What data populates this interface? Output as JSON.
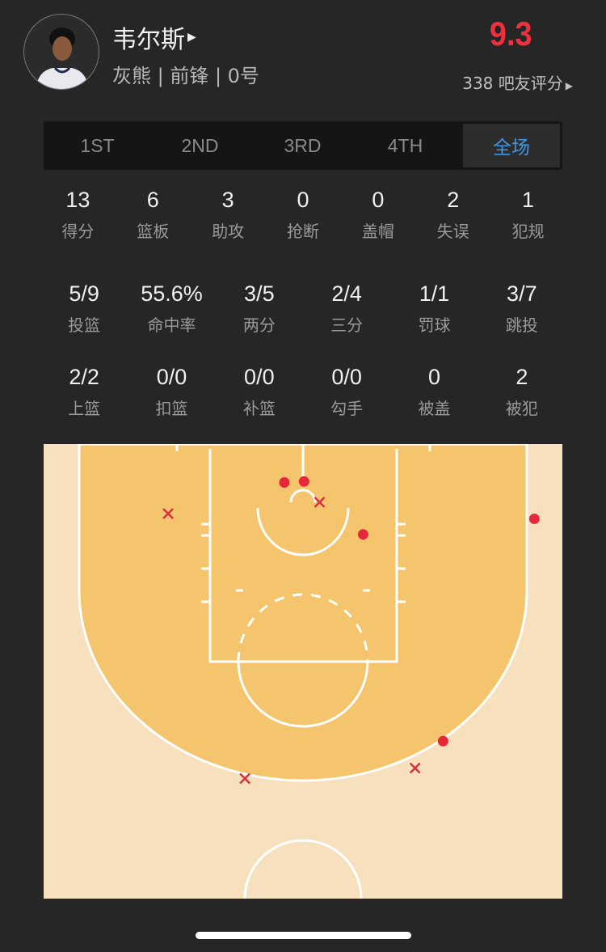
{
  "player": {
    "name": "韦尔斯",
    "info": "灰熊 | 前锋 | 0号",
    "rating": "9.3",
    "raters": "338 吧友评分",
    "rating_color": "#f0303c"
  },
  "tabs": [
    {
      "label": "1ST",
      "active": false
    },
    {
      "label": "2ND",
      "active": false
    },
    {
      "label": "3RD",
      "active": false
    },
    {
      "label": "4TH",
      "active": false
    },
    {
      "label": "全场",
      "active": true
    }
  ],
  "stats_row1": [
    {
      "value": "13",
      "label": "得分"
    },
    {
      "value": "6",
      "label": "篮板"
    },
    {
      "value": "3",
      "label": "助攻"
    },
    {
      "value": "0",
      "label": "抢断"
    },
    {
      "value": "0",
      "label": "盖帽"
    },
    {
      "value": "2",
      "label": "失误"
    },
    {
      "value": "1",
      "label": "犯规"
    }
  ],
  "stats_row2": [
    {
      "value": "5/9",
      "label": "投篮"
    },
    {
      "value": "55.6%",
      "label": "命中率"
    },
    {
      "value": "3/5",
      "label": "两分"
    },
    {
      "value": "2/4",
      "label": "三分"
    },
    {
      "value": "1/1",
      "label": "罚球"
    },
    {
      "value": "3/7",
      "label": "跳投"
    }
  ],
  "stats_row3": [
    {
      "value": "2/2",
      "label": "上篮"
    },
    {
      "value": "0/0",
      "label": "扣篮"
    },
    {
      "value": "0/0",
      "label": "补篮"
    },
    {
      "value": "0/0",
      "label": "勾手"
    },
    {
      "value": "0",
      "label": "被盖"
    },
    {
      "value": "2",
      "label": "被犯"
    }
  ],
  "shot_chart": {
    "colors": {
      "outside": "#f7e0bd",
      "inside": "#f4c56c",
      "made": "#e8283a",
      "miss": "#d8303c"
    },
    "units": "feet from left sideline / from baseline",
    "shots": [
      {
        "x": 23.2,
        "y": 3.7,
        "made": true
      },
      {
        "x": 25.1,
        "y": 3.6,
        "made": true
      },
      {
        "x": 30.8,
        "y": 8.7,
        "made": true
      },
      {
        "x": 47.3,
        "y": 7.2,
        "made": true
      },
      {
        "x": 38.5,
        "y": 28.6,
        "made": true
      },
      {
        "x": 12.0,
        "y": 6.7,
        "made": false
      },
      {
        "x": 26.6,
        "y": 5.6,
        "made": false
      },
      {
        "x": 19.4,
        "y": 32.2,
        "made": false
      },
      {
        "x": 35.8,
        "y": 31.2,
        "made": false
      }
    ]
  }
}
